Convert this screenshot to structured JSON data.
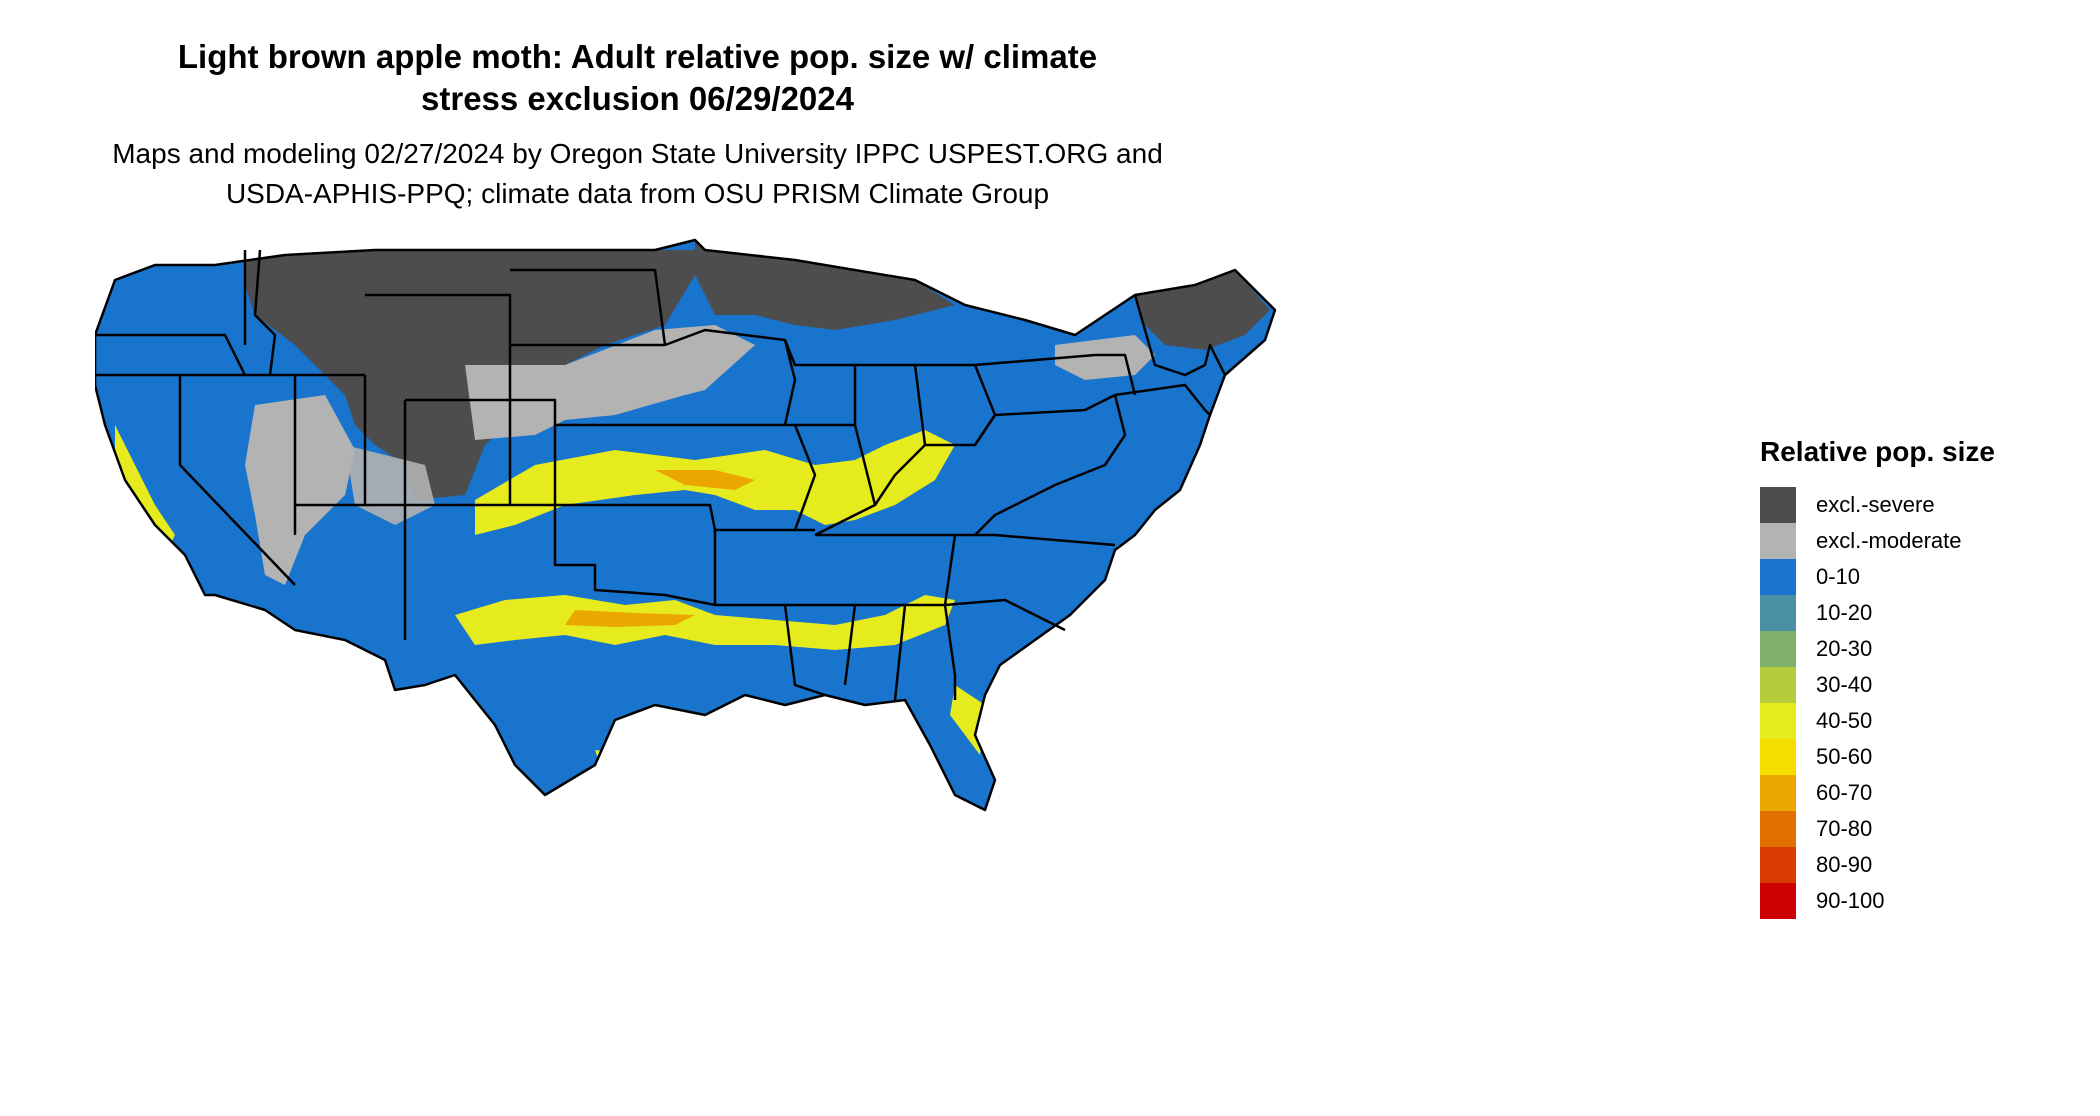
{
  "map": {
    "title_line1": "Light brown apple moth: Adult relative pop. size w/ climate",
    "title_line2": "stress exclusion 06/29/2024",
    "subtitle_line1": "Maps and modeling 02/27/2024 by Oregon State University IPPC USPEST.ORG and",
    "subtitle_line2": "USDA-APHIS-PPQ; climate data from OSU PRISM Climate Group",
    "background_color": "#1874cd",
    "state_border_color": "#000000"
  },
  "legend": {
    "title": "Relative pop. size",
    "items": [
      {
        "label": "excl.-severe",
        "color": "#4d4d4d"
      },
      {
        "label": "excl.-moderate",
        "color": "#b3b3b3"
      },
      {
        "label": "0-10",
        "color": "#1874cd"
      },
      {
        "label": "10-20",
        "color": "#4a90a4"
      },
      {
        "label": "20-30",
        "color": "#7fb069"
      },
      {
        "label": "30-40",
        "color": "#b5cc3c"
      },
      {
        "label": "40-50",
        "color": "#e6eb1e"
      },
      {
        "label": "50-60",
        "color": "#f5dd00"
      },
      {
        "label": "60-70",
        "color": "#eba600"
      },
      {
        "label": "70-80",
        "color": "#e07000"
      },
      {
        "label": "80-90",
        "color": "#d93a00"
      },
      {
        "label": "90-100",
        "color": "#cc0000"
      }
    ]
  }
}
